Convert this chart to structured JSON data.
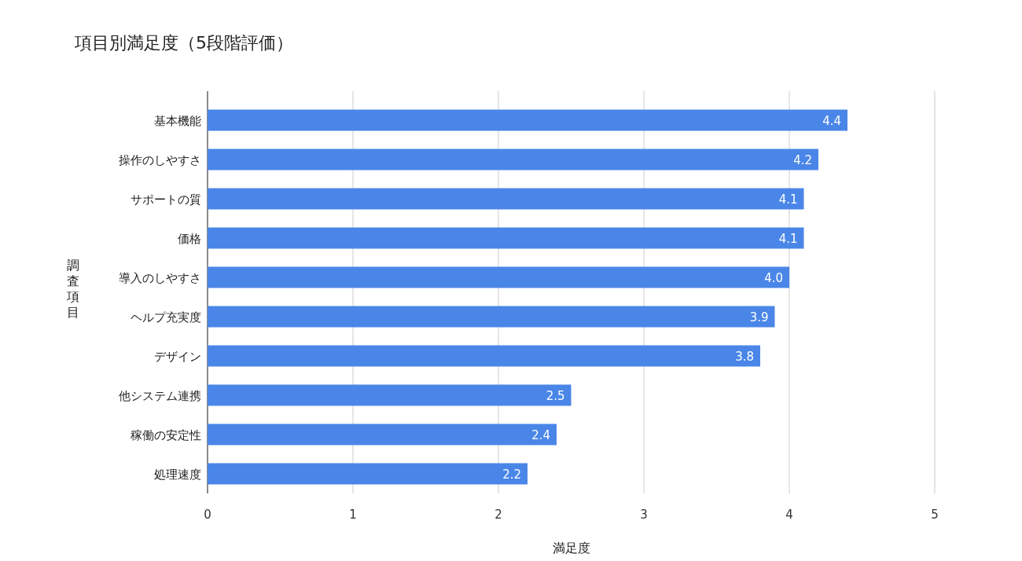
{
  "chart_data": {
    "type": "bar",
    "orientation": "horizontal",
    "title": "項目別満足度（5段階評価）",
    "xlabel": "満足度",
    "ylabel": "調査項目",
    "categories": [
      "基本機能",
      "操作のしやすさ",
      "サポートの質",
      "価格",
      "導入のしやすさ",
      "ヘルプ充実度",
      "デザイン",
      "他システム連携",
      "稼働の安定性",
      "処理速度"
    ],
    "values": [
      4.4,
      4.2,
      4.1,
      4.1,
      4.0,
      3.9,
      3.8,
      2.5,
      2.4,
      2.2
    ],
    "value_labels": [
      "4.4",
      "4.2",
      "4.1",
      "4.1",
      "4.0",
      "3.9",
      "3.8",
      "2.5",
      "2.4",
      "2.2"
    ],
    "color": "#4a86e8",
    "xlim": [
      0,
      5
    ],
    "xticks": [
      0,
      1,
      2,
      3,
      4,
      5
    ],
    "grid": "x"
  }
}
